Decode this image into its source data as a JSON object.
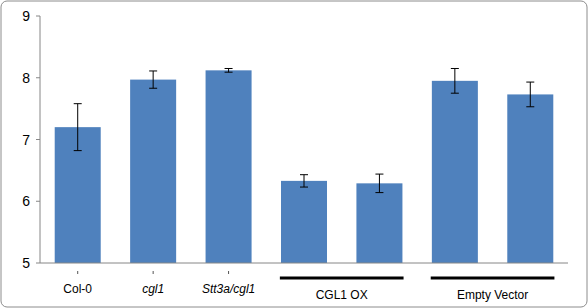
{
  "chart_data": {
    "type": "bar",
    "categories": [
      "Col-0",
      "cgl1",
      "Stt3a/cgl1",
      null,
      null,
      null,
      null
    ],
    "values": [
      7.2,
      7.97,
      8.12,
      6.33,
      6.29,
      7.95,
      7.73
    ],
    "errors": [
      0.38,
      0.14,
      0.03,
      0.1,
      0.15,
      0.2,
      0.2
    ],
    "color": "#4f81bd",
    "ylim": [
      5,
      9
    ],
    "yticks": [
      5,
      6,
      7,
      8,
      9
    ],
    "grid": false,
    "groups": [
      {
        "label": "CGL1 OX",
        "start": 3,
        "end": 4
      },
      {
        "label": "Empty Vector",
        "start": 5,
        "end": 6
      }
    ]
  }
}
